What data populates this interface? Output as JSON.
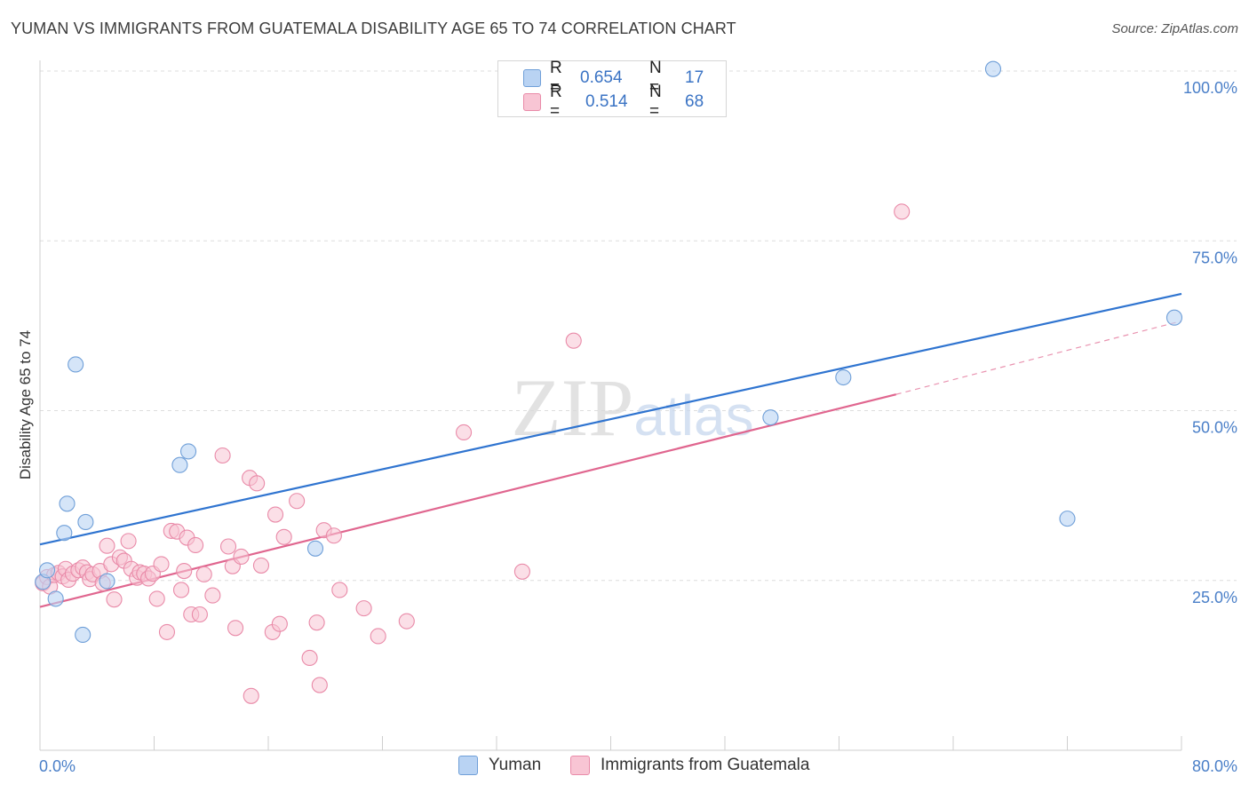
{
  "title": "YUMAN VS IMMIGRANTS FROM GUATEMALA DISABILITY AGE 65 TO 74 CORRELATION CHART",
  "source": "Source: ZipAtlas.com",
  "watermark": "ZIPatlas",
  "legend": {
    "r_label": "R =",
    "n_label": "N =",
    "rows": [
      {
        "r": "0.654",
        "n": "17"
      },
      {
        "r": "0.514",
        "n": "68"
      }
    ]
  },
  "colors": {
    "yuman_fill": "#b9d3f3",
    "yuman_stroke": "#6f9fd8",
    "yuman_line": "#2f74d0",
    "guat_fill": "#f8c5d4",
    "guat_stroke": "#e98aa8",
    "guat_line": "#e0668f",
    "tick_text": "#4a7fc8",
    "grid": "#dddddd"
  },
  "chart_data": {
    "type": "scatter",
    "title": "YUMAN VS IMMIGRANTS FROM GUATEMALA DISABILITY AGE 65 TO 74 CORRELATION CHART",
    "xlabel": "",
    "ylabel": "Disability Age 65 to 74",
    "xlim": [
      0,
      80
    ],
    "ylim": [
      0,
      100
    ],
    "x_tick_labels": [
      "0.0%",
      "80.0%"
    ],
    "y_tick_labels": [
      "100.0%",
      "75.0%",
      "50.0%",
      "25.0%"
    ],
    "y_ticks": [
      100,
      75,
      50,
      25
    ],
    "grid": true,
    "legend_position": "top-center",
    "series": [
      {
        "name": "Yuman",
        "r": 0.654,
        "n": 17,
        "trend": {
          "x": [
            0,
            80
          ],
          "y": [
            30.3,
            67.2
          ]
        },
        "points": [
          [
            0.2,
            24.8
          ],
          [
            0.5,
            26.5
          ],
          [
            1.1,
            22.3
          ],
          [
            1.7,
            32.0
          ],
          [
            1.9,
            36.3
          ],
          [
            2.5,
            56.8
          ],
          [
            3.0,
            17.0
          ],
          [
            3.2,
            33.6
          ],
          [
            4.7,
            24.9
          ],
          [
            9.8,
            42.0
          ],
          [
            10.4,
            44.0
          ],
          [
            19.3,
            29.7
          ],
          [
            51.2,
            49.0
          ],
          [
            56.3,
            54.9
          ],
          [
            66.8,
            100.3
          ],
          [
            72.0,
            34.1
          ],
          [
            79.5,
            63.7
          ]
        ]
      },
      {
        "name": "Immigrants from Guatemala",
        "r": 0.514,
        "n": 68,
        "trend": {
          "x": [
            0,
            60
          ],
          "y": [
            21.1,
            52.4
          ]
        },
        "trend_dashed": {
          "x": [
            60,
            80
          ],
          "y": [
            52.4,
            63.2
          ]
        },
        "points": [
          [
            0.2,
            24.6
          ],
          [
            0.5,
            25.5
          ],
          [
            0.7,
            24.1
          ],
          [
            1.0,
            25.8
          ],
          [
            1.3,
            26.1
          ],
          [
            1.6,
            25.6
          ],
          [
            1.8,
            26.7
          ],
          [
            2.0,
            25.1
          ],
          [
            2.3,
            26.0
          ],
          [
            2.7,
            26.5
          ],
          [
            3.0,
            26.9
          ],
          [
            3.3,
            26.2
          ],
          [
            3.5,
            25.2
          ],
          [
            3.7,
            25.9
          ],
          [
            4.2,
            26.4
          ],
          [
            4.4,
            24.6
          ],
          [
            4.7,
            30.1
          ],
          [
            5.0,
            27.4
          ],
          [
            5.2,
            22.2
          ],
          [
            5.6,
            28.4
          ],
          [
            5.9,
            27.9
          ],
          [
            6.2,
            30.8
          ],
          [
            6.4,
            26.7
          ],
          [
            6.8,
            25.4
          ],
          [
            7.0,
            26.2
          ],
          [
            7.3,
            26.0
          ],
          [
            7.6,
            25.3
          ],
          [
            7.9,
            26.0
          ],
          [
            8.2,
            22.3
          ],
          [
            8.5,
            27.4
          ],
          [
            8.9,
            17.4
          ],
          [
            9.2,
            32.3
          ],
          [
            9.6,
            32.2
          ],
          [
            9.9,
            23.6
          ],
          [
            10.1,
            26.4
          ],
          [
            10.3,
            31.3
          ],
          [
            10.6,
            20.0
          ],
          [
            10.9,
            30.2
          ],
          [
            11.2,
            20.0
          ],
          [
            11.5,
            25.9
          ],
          [
            12.1,
            22.8
          ],
          [
            12.8,
            43.4
          ],
          [
            13.2,
            30.0
          ],
          [
            13.5,
            27.1
          ],
          [
            13.7,
            18.0
          ],
          [
            14.1,
            28.5
          ],
          [
            14.7,
            40.1
          ],
          [
            15.2,
            39.3
          ],
          [
            15.5,
            27.2
          ],
          [
            16.3,
            17.4
          ],
          [
            16.5,
            34.7
          ],
          [
            16.8,
            18.6
          ],
          [
            17.1,
            31.4
          ],
          [
            18.0,
            36.7
          ],
          [
            18.9,
            13.6
          ],
          [
            19.4,
            18.8
          ],
          [
            19.6,
            9.6
          ],
          [
            19.9,
            32.4
          ],
          [
            20.6,
            31.6
          ],
          [
            21.0,
            23.6
          ],
          [
            22.7,
            20.9
          ],
          [
            23.7,
            16.8
          ],
          [
            25.7,
            19.0
          ],
          [
            29.7,
            46.8
          ],
          [
            33.8,
            26.3
          ],
          [
            37.4,
            60.3
          ],
          [
            60.4,
            79.3
          ],
          [
            14.8,
            8.0
          ]
        ]
      }
    ]
  },
  "bottom_legend": [
    {
      "label": "Yuman"
    },
    {
      "label": "Immigrants from Guatemala"
    }
  ]
}
